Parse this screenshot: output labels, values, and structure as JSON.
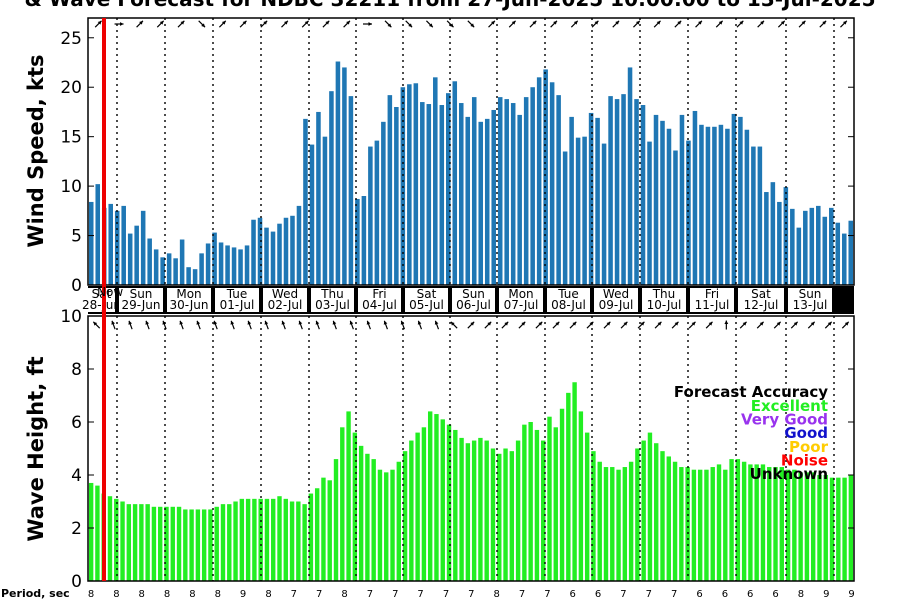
{
  "title": "& Wave Forecast for NDBC 32211 from 27-Jun-2025 10:00:00 to 13-Jul-2025",
  "chart_data": [
    {
      "type": "bar",
      "ylabel": "Wind Speed, kts",
      "ylim": [
        0,
        27
      ],
      "yticks": [
        0,
        5,
        10,
        15,
        20,
        25
      ],
      "color": "#1f77b4",
      "values": [
        8.4,
        10.2,
        7.8,
        8.2,
        7.5,
        8.0,
        5.2,
        6.0,
        7.5,
        4.7,
        3.6,
        2.8,
        3.2,
        2.7,
        4.6,
        1.8,
        1.6,
        3.2,
        4.2,
        5.3,
        4.3,
        4.0,
        3.8,
        3.6,
        4.0,
        6.6,
        6.8,
        5.8,
        5.4,
        6.2,
        6.8,
        7.0,
        8.0,
        16.8,
        14.2,
        17.5,
        15.0,
        19.6,
        22.6,
        22.0,
        19.1,
        8.7,
        9.0,
        14.0,
        14.6,
        16.5,
        19.2,
        18.0,
        20.0,
        20.3,
        20.4,
        18.5,
        18.3,
        21.0,
        18.2,
        19.4,
        20.6,
        18.4,
        17.0,
        19.0,
        16.5,
        16.8,
        17.7,
        19.0,
        18.8,
        18.4,
        17.2,
        19.0,
        20.0,
        21.0,
        21.8,
        20.5,
        19.2,
        13.5,
        17.0,
        14.9,
        15.0,
        17.4,
        16.9,
        14.3,
        19.1,
        18.8,
        19.3,
        22.0,
        18.8,
        18.2,
        14.5,
        17.2,
        16.6,
        15.8,
        13.6,
        17.2,
        14.6,
        17.6,
        16.2,
        16.0,
        16.0,
        16.2,
        15.8,
        17.3,
        17.0,
        15.7,
        14.0,
        14.0,
        9.4,
        10.4,
        8.4,
        9.9,
        7.7,
        5.8,
        7.5,
        7.8,
        8.0,
        6.9,
        7.8,
        6.3,
        5.2,
        6.5
      ],
      "arrows_deg": [
        45,
        0,
        45,
        45,
        45,
        315,
        45,
        45,
        45,
        45,
        45,
        45,
        45,
        0,
        315,
        315,
        315,
        315,
        315,
        45,
        45,
        45,
        45,
        45,
        45,
        45,
        45,
        45,
        45,
        45,
        45,
        45,
        45,
        45,
        45,
        45,
        45
      ],
      "day_labels": [
        {
          "day": "Sat",
          "date": "28-Jun"
        },
        {
          "day": "Sun",
          "date": "29-Jun"
        },
        {
          "day": "Mon",
          "date": "30-Jun"
        },
        {
          "day": "Tue",
          "date": "01-Jul"
        },
        {
          "day": "Wed",
          "date": "02-Jul"
        },
        {
          "day": "Thu",
          "date": "03-Jul"
        },
        {
          "day": "Fri",
          "date": "04-Jul"
        },
        {
          "day": "Sat",
          "date": "05-Jul"
        },
        {
          "day": "Sun",
          "date": "06-Jul"
        },
        {
          "day": "Mon",
          "date": "07-Jul"
        },
        {
          "day": "Tue",
          "date": "08-Jul"
        },
        {
          "day": "Wed",
          "date": "09-Jul"
        },
        {
          "day": "Thu",
          "date": "10-Jul"
        },
        {
          "day": "Fri",
          "date": "11-Jul"
        },
        {
          "day": "Sat",
          "date": "12-Jul"
        },
        {
          "day": "Sun",
          "date": "13-Jul"
        }
      ],
      "now_label": "Now"
    },
    {
      "type": "bar",
      "ylabel": "Wave Height, ft",
      "ylim": [
        0,
        10
      ],
      "yticks": [
        0,
        2,
        4,
        6,
        8,
        10
      ],
      "color": "#22ee22",
      "values": [
        3.7,
        3.6,
        3.3,
        3.2,
        3.1,
        3.0,
        2.9,
        2.9,
        2.9,
        2.9,
        2.8,
        2.8,
        2.8,
        2.8,
        2.8,
        2.7,
        2.7,
        2.7,
        2.7,
        2.7,
        2.8,
        2.9,
        2.9,
        3.0,
        3.1,
        3.1,
        3.1,
        3.1,
        3.1,
        3.1,
        3.2,
        3.1,
        3.0,
        3.0,
        2.9,
        3.3,
        3.5,
        3.9,
        3.8,
        4.6,
        5.8,
        6.4,
        5.6,
        5.1,
        4.8,
        4.6,
        4.2,
        4.1,
        4.2,
        4.5,
        4.9,
        5.3,
        5.6,
        5.8,
        6.4,
        6.3,
        6.1,
        5.9,
        5.7,
        5.4,
        5.2,
        5.3,
        5.4,
        5.3,
        5.0,
        4.8,
        5.0,
        4.9,
        5.3,
        5.9,
        6.0,
        5.7,
        5.3,
        6.2,
        5.8,
        6.5,
        7.1,
        7.5,
        6.4,
        5.6,
        4.9,
        4.5,
        4.3,
        4.3,
        4.2,
        4.3,
        4.5,
        5.0,
        5.3,
        5.6,
        5.2,
        4.9,
        4.7,
        4.5,
        4.3,
        4.3,
        4.2,
        4.2,
        4.2,
        4.3,
        4.4,
        4.2,
        4.6,
        4.6,
        4.5,
        4.4,
        4.4,
        4.4,
        4.3,
        4.3,
        4.3,
        4.2,
        4.2,
        4.1,
        4.1,
        4.1,
        4.0,
        4.0,
        3.9,
        3.9,
        3.9,
        4.0
      ],
      "arrows_deg": [
        135,
        110,
        110,
        110,
        110,
        110,
        110,
        110,
        110,
        110,
        110,
        110,
        110,
        110,
        110,
        110,
        110,
        110,
        110,
        110,
        110,
        135,
        45,
        45,
        45,
        45,
        45,
        45,
        45,
        45,
        45,
        45,
        45,
        45,
        45,
        45,
        45,
        90,
        45,
        45,
        45,
        45,
        45,
        45,
        45
      ],
      "legend": {
        "title": "Forecast Accuracy",
        "items": [
          {
            "label": "Excellent",
            "color": "#22ee22"
          },
          {
            "label": "Very Good",
            "color": "#9933ee"
          },
          {
            "label": "Good",
            "color": "#1111cc"
          },
          {
            "label": "Poor",
            "color": "#ffcc00"
          },
          {
            "label": "Noise",
            "color": "#ff0000"
          },
          {
            "label": "Unknown",
            "color": "#000000"
          }
        ]
      }
    }
  ],
  "period": {
    "label": "Period, sec",
    "values": [
      8,
      8,
      8,
      8,
      8,
      8,
      9,
      8,
      7,
      7,
      8,
      7,
      7,
      7,
      7,
      7,
      8,
      7,
      7,
      6,
      6,
      7,
      7,
      7,
      6,
      6,
      6,
      6,
      8,
      9,
      9
    ]
  }
}
